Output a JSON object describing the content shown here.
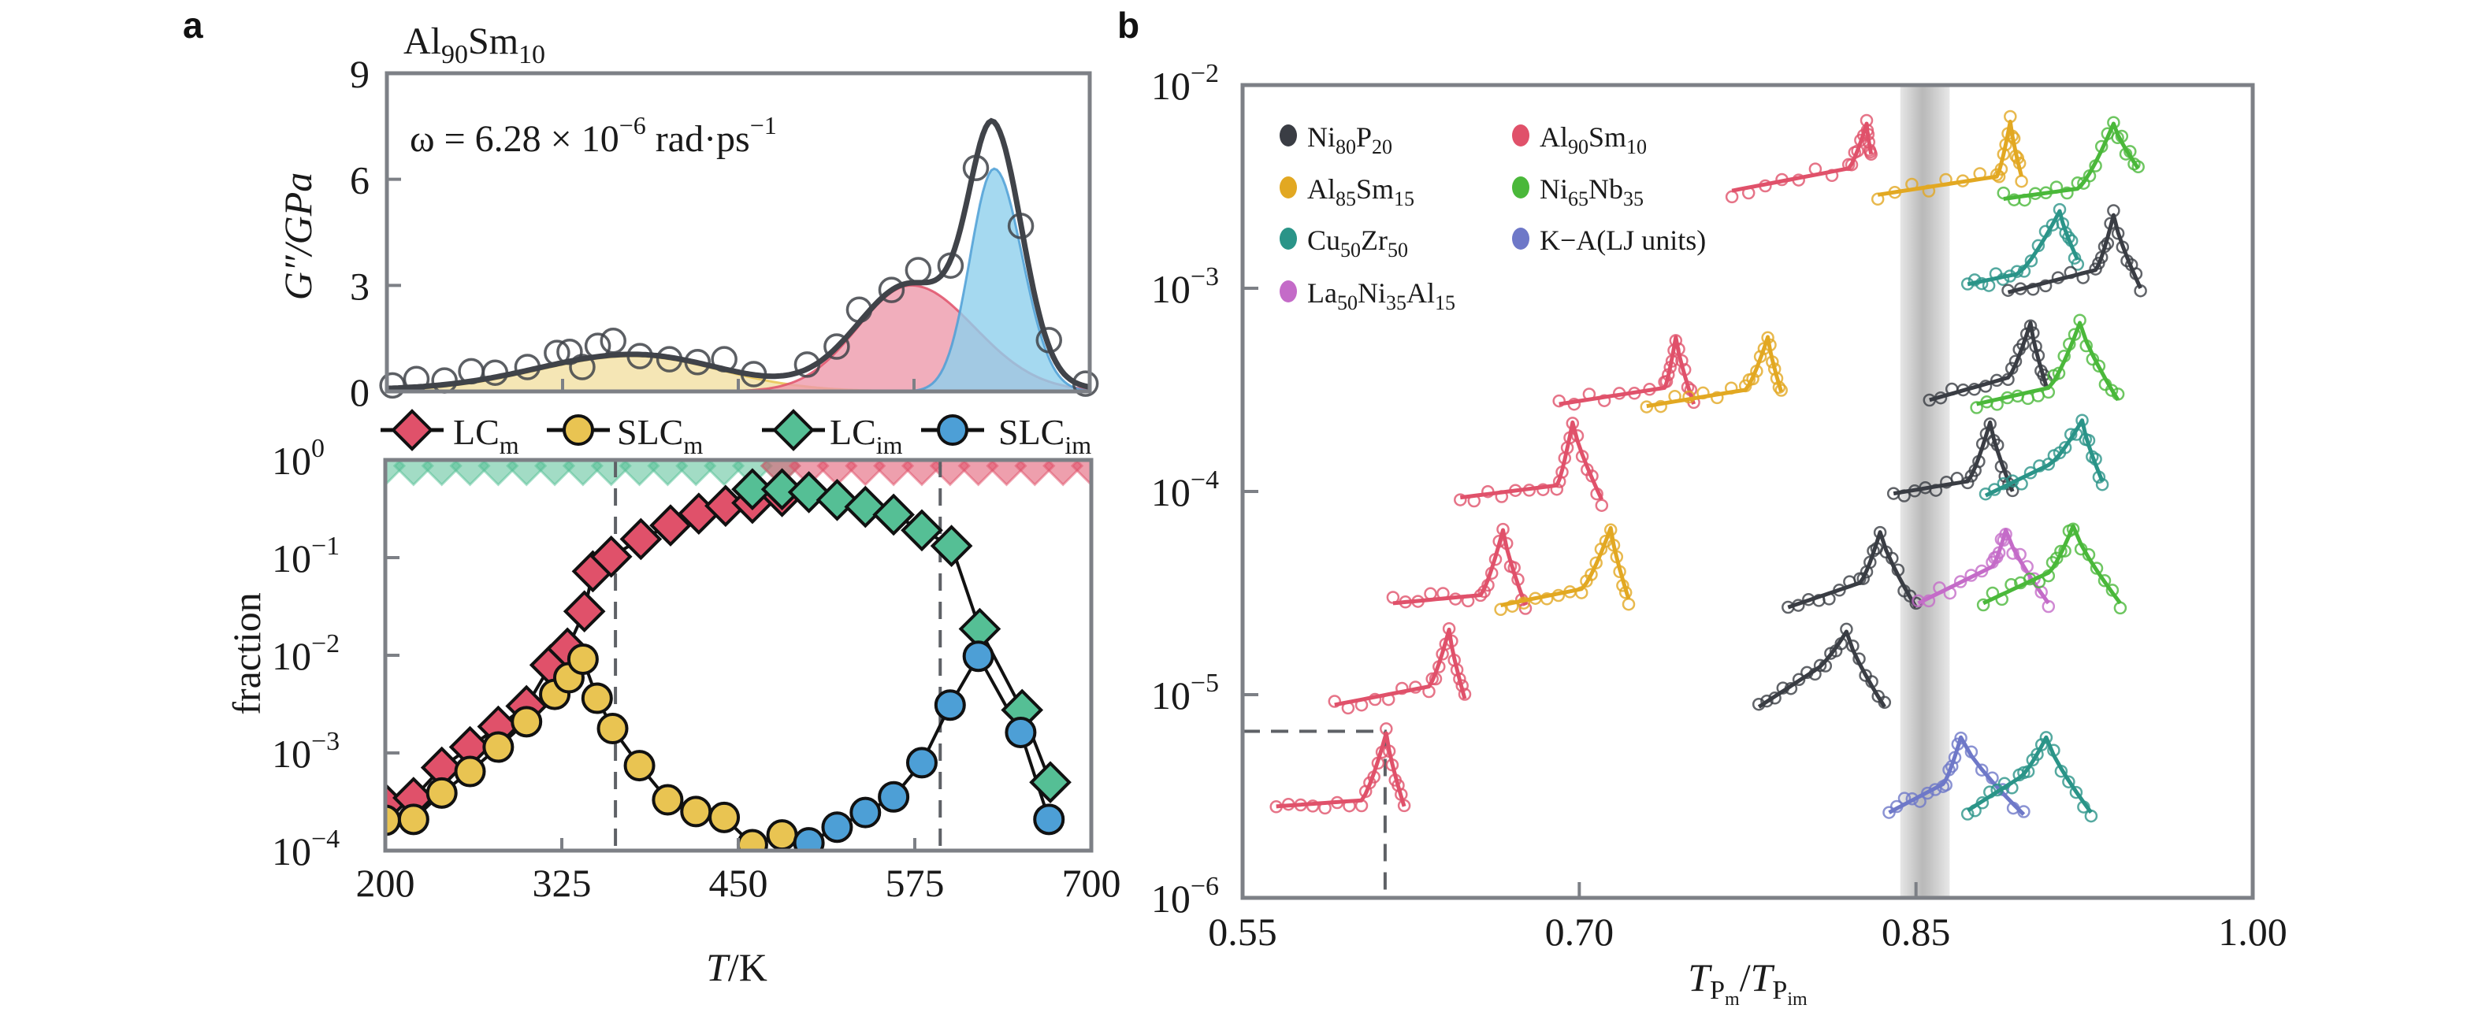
{
  "panel_labels": {
    "a": "a",
    "b": "b"
  },
  "colors": {
    "lc_m": "#e0516a",
    "slc_m": "#e9c452",
    "lc_im": "#55bf95",
    "slc_im": "#4d9fd6",
    "fill_slc_m": "#f2e0a2",
    "fill_lc_m": "#ee9aab",
    "fill_slc_im": "#8fd0ec",
    "total": "#404349",
    "frame": "#7d8086",
    "band": "#b9b9b9",
    "b_series": {
      "Ni80P20": "#3a3d44",
      "Al90Sm10": "#e0516a",
      "Al85Sm15": "#e2a822",
      "Ni65Nb35": "#4ab83a",
      "Cu50Zr50": "#2a9488",
      "K-A": "#6e78c8",
      "La50Ni35Al15": "#c46bc8"
    }
  },
  "chart_data": [
    {
      "id": "a-top",
      "type": "area",
      "title": "Al90Sm10",
      "title_parts": {
        "base1": "Al",
        "sub1": "90",
        "base2": "Sm",
        "sub2": "10"
      },
      "annotation": {
        "prefix": "ω = 6.28 × 10",
        "exp": "−6",
        "suffix": " rad·ps",
        "suffix_exp": "−1"
      },
      "xlabel": "T/K",
      "ylabel": "G″/GPa",
      "xlim": [
        200,
        700
      ],
      "ylim": [
        0,
        9
      ],
      "yticks": [
        0,
        3,
        6,
        9
      ],
      "xticks_minor": [
        325,
        450,
        575
      ],
      "components": [
        {
          "name": "SLC_m",
          "center": 375,
          "amplitude": 1.0,
          "sigma_left": 68,
          "sigma_right": 62
        },
        {
          "name": "LC_m",
          "center": 573,
          "amplitude": 3.0,
          "sigma_left": 38,
          "sigma_right": 45
        },
        {
          "name": "SLC_im",
          "center": 632,
          "amplitude": 6.3,
          "sigma_left": 17,
          "sigma_right": 20
        }
      ],
      "points": [
        [
          204,
          0.17
        ],
        [
          221,
          0.35
        ],
        [
          241,
          0.31
        ],
        [
          260,
          0.57
        ],
        [
          277,
          0.53
        ],
        [
          300,
          0.69
        ],
        [
          321,
          1.09
        ],
        [
          330,
          1.12
        ],
        [
          339,
          0.69
        ],
        [
          350,
          1.29
        ],
        [
          361,
          1.43
        ],
        [
          380,
          1.0
        ],
        [
          401,
          0.91
        ],
        [
          421,
          0.83
        ],
        [
          440,
          0.91
        ],
        [
          461,
          0.49
        ],
        [
          499,
          0.76
        ],
        [
          520,
          1.27
        ],
        [
          536,
          2.31
        ],
        [
          559,
          2.87
        ],
        [
          578,
          3.43
        ],
        [
          601,
          3.56
        ],
        [
          619,
          6.32
        ],
        [
          651,
          4.68
        ],
        [
          671,
          1.45
        ],
        [
          697,
          0.22
        ]
      ]
    },
    {
      "id": "a-bottom",
      "type": "line",
      "xlabel": "T/K",
      "ylabel": "fraction",
      "xlim": [
        200,
        700
      ],
      "ylim_log10": [
        -4,
        0
      ],
      "xticks": [
        200,
        325,
        450,
        575,
        700
      ],
      "yticks": [
        {
          "exp": "0"
        },
        {
          "exp": "−1"
        },
        {
          "exp": "−2"
        },
        {
          "exp": "−3"
        },
        {
          "exp": "−4"
        }
      ],
      "vlines": [
        363,
        593
      ],
      "legend": [
        {
          "key": "lc_m",
          "base": "LC",
          "sub": "m",
          "marker": "diamond"
        },
        {
          "key": "slc_m",
          "base": "SLC",
          "sub": "m",
          "marker": "circle"
        },
        {
          "key": "lc_im",
          "base": "LC",
          "sub": "im",
          "marker": "diamond"
        },
        {
          "key": "slc_im",
          "base": "SLC",
          "sub": "im",
          "marker": "circle"
        }
      ],
      "legend_position": "top",
      "series": [
        {
          "name": "LC_m",
          "key": "lc_m",
          "marker": "diamond",
          "log10": [
            [
              200,
              -3.52
            ],
            [
              220,
              -3.46
            ],
            [
              240,
              -3.15
            ],
            [
              260,
              -2.94
            ],
            [
              280,
              -2.73
            ],
            [
              300,
              -2.52
            ],
            [
              317,
              -2.1
            ],
            [
              329,
              -1.93
            ],
            [
              341,
              -1.55
            ],
            [
              347,
              -1.14
            ],
            [
              360,
              -0.99
            ],
            [
              381,
              -0.81
            ],
            [
              402,
              -0.67
            ],
            [
              422,
              -0.55
            ],
            [
              441,
              -0.47
            ],
            [
              460,
              -0.44
            ],
            [
              481,
              -0.37
            ]
          ]
        },
        {
          "name": "SLC_m",
          "key": "slc_m",
          "marker": "circle",
          "log10": [
            [
              200,
              -3.69
            ],
            [
              220,
              -3.68
            ],
            [
              240,
              -3.41
            ],
            [
              260,
              -3.19
            ],
            [
              280,
              -2.94
            ],
            [
              300,
              -2.68
            ],
            [
              320,
              -2.4
            ],
            [
              330,
              -2.23
            ],
            [
              340,
              -2.04
            ],
            [
              350,
              -2.44
            ],
            [
              361,
              -2.75
            ],
            [
              380,
              -3.13
            ],
            [
              400,
              -3.48
            ],
            [
              420,
              -3.6
            ],
            [
              440,
              -3.66
            ],
            [
              460,
              -3.94
            ],
            [
              481,
              -3.84
            ]
          ]
        },
        {
          "name": "LC_im",
          "key": "lc_im",
          "marker": "diamond",
          "log10": [
            [
              460,
              -0.3
            ],
            [
              481,
              -0.3
            ],
            [
              500,
              -0.33
            ],
            [
              520,
              -0.41
            ],
            [
              540,
              -0.48
            ],
            [
              560,
              -0.56
            ],
            [
              580,
              -0.72
            ],
            [
              601,
              -0.88
            ],
            [
              621,
              -1.73
            ],
            [
              651,
              -2.56
            ],
            [
              671,
              -3.3
            ]
          ]
        },
        {
          "name": "SLC_im",
          "key": "slc_im",
          "marker": "circle",
          "log10": [
            [
              500,
              -3.92
            ],
            [
              520,
              -3.76
            ],
            [
              540,
              -3.61
            ],
            [
              560,
              -3.45
            ],
            [
              580,
              -3.1
            ],
            [
              600,
              -2.51
            ],
            [
              620,
              -2.01
            ],
            [
              650,
              -2.79
            ],
            [
              670,
              -3.68
            ]
          ]
        }
      ],
      "faded_series": [
        {
          "key": "lc_im",
          "from": 200,
          "to": 480,
          "log10": -0.06
        },
        {
          "key": "lc_m",
          "from": 480,
          "to": 700,
          "log10": -0.06
        }
      ]
    },
    {
      "id": "b",
      "type": "line",
      "xlabel": "T_Pm/T_Pim",
      "xlabel_parts": {
        "t1": "T",
        "s1": "P",
        "ss1": "m",
        "slash": "/",
        "t2": "T",
        "s2": "P",
        "ss2": "im"
      },
      "ylabel": "",
      "xlim": [
        0.55,
        1.0
      ],
      "ylim_log10": [
        -6,
        -2
      ],
      "xticks": [
        "0.55",
        "0.70",
        "0.85",
        "1.00"
      ],
      "xtick_values": [
        0.55,
        0.7,
        0.85,
        1.0
      ],
      "yticks": [
        {
          "value": -2,
          "exp": "−2"
        },
        {
          "value": -3,
          "exp": "−3"
        },
        {
          "value": -4,
          "exp": "−4"
        },
        {
          "value": -5,
          "exp": "−5"
        },
        {
          "value": -6,
          "exp": "−6"
        }
      ],
      "shaded_band": [
        0.843,
        0.865
      ],
      "reference_point": {
        "x": 0.6135,
        "log10": -5.18
      },
      "legend": [
        {
          "key": "Ni80P20",
          "parts": [
            [
              "Ni",
              ""
            ],
            [
              "80",
              "sub"
            ],
            [
              "P",
              ""
            ],
            [
              "20",
              "sub"
            ]
          ]
        },
        {
          "key": "Al90Sm10",
          "parts": [
            [
              "Al",
              ""
            ],
            [
              "90",
              "sub"
            ],
            [
              "Sm",
              ""
            ],
            [
              "10",
              "sub"
            ]
          ]
        },
        {
          "key": "Al85Sm15",
          "parts": [
            [
              "Al",
              ""
            ],
            [
              "85",
              "sub"
            ],
            [
              "Sm",
              ""
            ],
            [
              "15",
              "sub"
            ]
          ]
        },
        {
          "key": "Ni65Nb35",
          "parts": [
            [
              "Ni",
              ""
            ],
            [
              "65",
              "sub"
            ],
            [
              "Nb",
              ""
            ],
            [
              "35",
              "sub"
            ]
          ]
        },
        {
          "key": "Cu50Zr50",
          "parts": [
            [
              "Cu",
              ""
            ],
            [
              "50",
              "sub"
            ],
            [
              "Zr",
              ""
            ],
            [
              "50",
              "sub"
            ]
          ]
        },
        {
          "key": "K-A",
          "parts": [
            [
              "K−A(LJ units)",
              ""
            ]
          ]
        },
        {
          "key": "La50Ni35Al15",
          "parts": [
            [
              "La",
              ""
            ],
            [
              "50",
              "sub"
            ],
            [
              "Ni",
              ""
            ],
            [
              "35",
              "sub"
            ],
            [
              "Al",
              ""
            ],
            [
              "15",
              "sub"
            ]
          ]
        }
      ],
      "legend_position": "top-left",
      "curves": [
        {
          "series": "Al90Sm10",
          "start": [
            0.768,
            -2.52
          ],
          "pre": [
            0.82,
            -2.41
          ],
          "peak": [
            0.828,
            -2.19
          ],
          "end": [
            0.83,
            -2.34
          ]
        },
        {
          "series": "Al85Sm15",
          "start": [
            0.833,
            -2.54
          ],
          "pre": [
            0.886,
            -2.45
          ],
          "peak": [
            0.892,
            -2.18
          ],
          "end": [
            0.897,
            -2.45
          ]
        },
        {
          "series": "Ni65Nb35",
          "start": [
            0.889,
            -2.56
          ],
          "pre": [
            0.922,
            -2.51
          ],
          "peak": [
            0.938,
            -2.19
          ],
          "end": [
            0.949,
            -2.41
          ]
        },
        {
          "series": "Cu50Zr50",
          "start": [
            0.873,
            -2.98
          ],
          "pre": [
            0.895,
            -2.93
          ],
          "peak": [
            0.914,
            -2.62
          ],
          "end": [
            0.922,
            -2.86
          ]
        },
        {
          "series": "Ni80P20",
          "start": [
            0.891,
            -3.02
          ],
          "pre": [
            0.93,
            -2.91
          ],
          "peak": [
            0.938,
            -2.64
          ],
          "end": [
            0.95,
            -3.0
          ]
        },
        {
          "series": "Al90Sm10",
          "start": [
            0.691,
            -3.57
          ],
          "pre": [
            0.738,
            -3.49
          ],
          "peak": [
            0.743,
            -3.24
          ],
          "end": [
            0.751,
            -3.57
          ]
        },
        {
          "series": "Al85Sm15",
          "start": [
            0.73,
            -3.58
          ],
          "pre": [
            0.774,
            -3.5
          ],
          "peak": [
            0.784,
            -3.24
          ],
          "end": [
            0.79,
            -3.51
          ]
        },
        {
          "series": "Ni80P20",
          "start": [
            0.856,
            -3.55
          ],
          "pre": [
            0.891,
            -3.44
          ],
          "peak": [
            0.901,
            -3.17
          ],
          "end": [
            0.908,
            -3.48
          ]
        },
        {
          "series": "Ni65Nb35",
          "start": [
            0.877,
            -3.57
          ],
          "pre": [
            0.909,
            -3.49
          ],
          "peak": [
            0.923,
            -3.17
          ],
          "end": [
            0.94,
            -3.55
          ]
        },
        {
          "series": "Al90Sm10",
          "start": [
            0.647,
            -4.03
          ],
          "pre": [
            0.69,
            -3.97
          ],
          "peak": [
            0.697,
            -3.66
          ],
          "end": [
            0.71,
            -4.04
          ]
        },
        {
          "series": "Ni80P20",
          "start": [
            0.84,
            -4.01
          ],
          "pre": [
            0.873,
            -3.95
          ],
          "peak": [
            0.883,
            -3.66
          ],
          "end": [
            0.893,
            -4.0
          ]
        },
        {
          "series": "Cu50Zr50",
          "start": [
            0.881,
            -4.02
          ],
          "pre": [
            0.909,
            -3.87
          ],
          "peak": [
            0.924,
            -3.65
          ],
          "end": [
            0.933,
            -3.95
          ]
        },
        {
          "series": "Al90Sm10",
          "start": [
            0.617,
            -4.55
          ],
          "pre": [
            0.656,
            -4.51
          ],
          "peak": [
            0.666,
            -4.19
          ],
          "end": [
            0.676,
            -4.56
          ]
        },
        {
          "series": "Al85Sm15",
          "start": [
            0.665,
            -4.56
          ],
          "pre": [
            0.701,
            -4.48
          ],
          "peak": [
            0.714,
            -4.18
          ],
          "end": [
            0.722,
            -4.53
          ]
        },
        {
          "series": "Ni80P20",
          "start": [
            0.793,
            -4.57
          ],
          "pre": [
            0.825,
            -4.45
          ],
          "peak": [
            0.834,
            -4.2
          ],
          "end": [
            0.85,
            -4.57
          ]
        },
        {
          "series": "La50Ni35Al15",
          "start": [
            0.851,
            -4.55
          ],
          "pre": [
            0.884,
            -4.37
          ],
          "peak": [
            0.89,
            -4.19
          ],
          "end": [
            0.909,
            -4.55
          ]
        },
        {
          "series": "Ni65Nb35",
          "start": [
            0.88,
            -4.55
          ],
          "pre": [
            0.909,
            -4.4
          ],
          "peak": [
            0.92,
            -4.17
          ],
          "end": [
            0.941,
            -4.55
          ]
        },
        {
          "series": "Al90Sm10",
          "start": [
            0.591,
            -5.05
          ],
          "pre": [
            0.633,
            -4.96
          ],
          "peak": [
            0.642,
            -4.68
          ],
          "end": [
            0.649,
            -5.02
          ]
        },
        {
          "series": "Ni80P20",
          "start": [
            0.78,
            -5.06
          ],
          "pre": [
            0.805,
            -4.88
          ],
          "peak": [
            0.819,
            -4.69
          ],
          "end": [
            0.836,
            -5.06
          ]
        },
        {
          "series": "Al90Sm10",
          "start": [
            0.565,
            -5.55
          ],
          "pre": [
            0.603,
            -5.52
          ],
          "peak": [
            0.614,
            -5.19
          ],
          "end": [
            0.622,
            -5.55
          ]
        },
        {
          "series": "K-A",
          "start": [
            0.838,
            -5.58
          ],
          "pre": [
            0.862,
            -5.44
          ],
          "peak": [
            0.87,
            -5.21
          ],
          "end": [
            0.898,
            -5.59
          ]
        },
        {
          "series": "Cu50Zr50",
          "start": [
            0.873,
            -5.57
          ],
          "pre": [
            0.896,
            -5.41
          ],
          "peak": [
            0.908,
            -5.21
          ],
          "end": [
            0.928,
            -5.58
          ]
        }
      ]
    }
  ]
}
